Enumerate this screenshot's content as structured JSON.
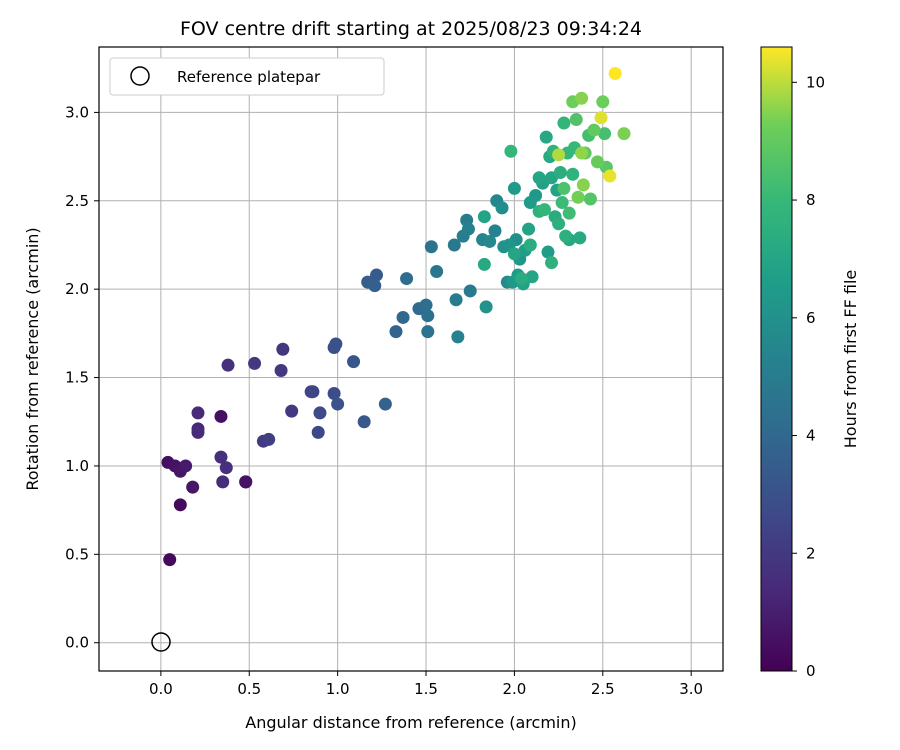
{
  "chart_data": {
    "type": "scatter",
    "title": "FOV centre drift starting at 2025/08/23 09:34:24",
    "xlabel": "Angular distance from reference (arcmin)",
    "ylabel": "Rotation from reference (arcmin)",
    "xlim": [
      -0.35,
      3.18
    ],
    "ylim": [
      -0.16,
      3.37
    ],
    "xticks": [
      "0.0",
      "0.5",
      "1.0",
      "1.5",
      "2.0",
      "2.5",
      "3.0"
    ],
    "yticks": [
      "0.0",
      "0.5",
      "1.0",
      "1.5",
      "2.0",
      "2.5",
      "3.0"
    ],
    "grid": true,
    "legend": {
      "position": "top-left",
      "entries": [
        {
          "label": "Reference platepar",
          "marker": "open-circle"
        }
      ]
    },
    "reference_point": {
      "x": 0.0,
      "y": 0.0
    },
    "colorbar": {
      "label": "Hours from first FF file",
      "range": [
        0,
        10.6
      ],
      "ticks": [
        "0",
        "2",
        "4",
        "6",
        "8",
        "10"
      ],
      "colormap": "viridis"
    },
    "points": [
      {
        "x": 0.05,
        "y": 0.47,
        "h": 0.3
      },
      {
        "x": 0.11,
        "y": 0.78,
        "h": 0.3
      },
      {
        "x": 0.04,
        "y": 1.02,
        "h": 0.5
      },
      {
        "x": 0.08,
        "y": 1.0,
        "h": 0.6
      },
      {
        "x": 0.11,
        "y": 0.97,
        "h": 0.7
      },
      {
        "x": 0.14,
        "y": 1.0,
        "h": 0.8
      },
      {
        "x": 0.18,
        "y": 0.88,
        "h": 0.7
      },
      {
        "x": 0.34,
        "y": 1.28,
        "h": 0.5
      },
      {
        "x": 0.48,
        "y": 0.91,
        "h": 0.4
      },
      {
        "x": 0.48,
        "y": 0.91,
        "h": 0.6
      },
      {
        "x": 0.21,
        "y": 1.3,
        "h": 1.4
      },
      {
        "x": 0.21,
        "y": 1.21,
        "h": 1.3
      },
      {
        "x": 0.21,
        "y": 1.19,
        "h": 1.5
      },
      {
        "x": 0.34,
        "y": 1.05,
        "h": 1.6
      },
      {
        "x": 0.35,
        "y": 0.91,
        "h": 1.5
      },
      {
        "x": 0.37,
        "y": 0.99,
        "h": 1.6
      },
      {
        "x": 0.38,
        "y": 1.57,
        "h": 1.7
      },
      {
        "x": 0.53,
        "y": 1.58,
        "h": 2.0
      },
      {
        "x": 0.58,
        "y": 1.14,
        "h": 2.1
      },
      {
        "x": 0.61,
        "y": 1.15,
        "h": 2.2
      },
      {
        "x": 0.68,
        "y": 1.54,
        "h": 2.0
      },
      {
        "x": 0.69,
        "y": 1.66,
        "h": 1.9
      },
      {
        "x": 0.74,
        "y": 1.31,
        "h": 2.0
      },
      {
        "x": 0.86,
        "y": 1.42,
        "h": 2.4
      },
      {
        "x": 0.85,
        "y": 1.42,
        "h": 2.5
      },
      {
        "x": 0.89,
        "y": 1.19,
        "h": 2.6
      },
      {
        "x": 0.9,
        "y": 1.3,
        "h": 2.7
      },
      {
        "x": 0.98,
        "y": 1.41,
        "h": 2.8
      },
      {
        "x": 0.98,
        "y": 1.67,
        "h": 2.9
      },
      {
        "x": 0.99,
        "y": 1.69,
        "h": 3.0
      },
      {
        "x": 1.0,
        "y": 1.35,
        "h": 3.1
      },
      {
        "x": 1.09,
        "y": 1.59,
        "h": 3.2
      },
      {
        "x": 1.15,
        "y": 1.25,
        "h": 3.3
      },
      {
        "x": 1.17,
        "y": 2.04,
        "h": 3.5
      },
      {
        "x": 1.21,
        "y": 2.02,
        "h": 3.6
      },
      {
        "x": 1.22,
        "y": 2.08,
        "h": 3.4
      },
      {
        "x": 1.27,
        "y": 1.35,
        "h": 3.7
      },
      {
        "x": 1.33,
        "y": 1.76,
        "h": 3.8
      },
      {
        "x": 1.37,
        "y": 1.84,
        "h": 4.0
      },
      {
        "x": 1.39,
        "y": 2.06,
        "h": 4.2
      },
      {
        "x": 1.46,
        "y": 1.89,
        "h": 4.1
      },
      {
        "x": 1.5,
        "y": 1.91,
        "h": 4.3
      },
      {
        "x": 1.51,
        "y": 1.85,
        "h": 4.4
      },
      {
        "x": 1.51,
        "y": 1.76,
        "h": 4.5
      },
      {
        "x": 1.53,
        "y": 2.24,
        "h": 4.6
      },
      {
        "x": 1.56,
        "y": 2.1,
        "h": 4.7
      },
      {
        "x": 1.66,
        "y": 2.25,
        "h": 4.8
      },
      {
        "x": 1.67,
        "y": 1.94,
        "h": 5.0
      },
      {
        "x": 1.68,
        "y": 1.73,
        "h": 5.3
      },
      {
        "x": 1.71,
        "y": 2.3,
        "h": 5.1
      },
      {
        "x": 1.73,
        "y": 2.39,
        "h": 5.0
      },
      {
        "x": 1.74,
        "y": 2.34,
        "h": 5.2
      },
      {
        "x": 1.75,
        "y": 1.99,
        "h": 4.9
      },
      {
        "x": 1.82,
        "y": 2.28,
        "h": 5.4
      },
      {
        "x": 1.84,
        "y": 1.9,
        "h": 6.1
      },
      {
        "x": 1.86,
        "y": 2.27,
        "h": 5.6
      },
      {
        "x": 1.89,
        "y": 2.33,
        "h": 5.3
      },
      {
        "x": 1.9,
        "y": 2.5,
        "h": 5.5
      },
      {
        "x": 1.93,
        "y": 2.46,
        "h": 5.8
      },
      {
        "x": 1.94,
        "y": 2.24,
        "h": 6.0
      },
      {
        "x": 1.96,
        "y": 2.04,
        "h": 5.7
      },
      {
        "x": 1.97,
        "y": 2.25,
        "h": 6.2
      },
      {
        "x": 1.99,
        "y": 2.04,
        "h": 6.4
      },
      {
        "x": 2.0,
        "y": 2.57,
        "h": 6.5
      },
      {
        "x": 2.01,
        "y": 2.28,
        "h": 5.9
      },
      {
        "x": 2.02,
        "y": 2.08,
        "h": 6.6
      },
      {
        "x": 2.03,
        "y": 2.17,
        "h": 6.3
      },
      {
        "x": 2.05,
        "y": 2.03,
        "h": 6.8
      },
      {
        "x": 2.06,
        "y": 2.22,
        "h": 6.7
      },
      {
        "x": 2.08,
        "y": 2.34,
        "h": 6.9
      },
      {
        "x": 2.09,
        "y": 2.49,
        "h": 6.5
      },
      {
        "x": 2.1,
        "y": 2.07,
        "h": 7.0
      },
      {
        "x": 2.12,
        "y": 2.53,
        "h": 6.4
      },
      {
        "x": 2.14,
        "y": 2.44,
        "h": 7.6
      },
      {
        "x": 2.16,
        "y": 2.6,
        "h": 6.8
      },
      {
        "x": 2.18,
        "y": 2.86,
        "h": 7.1
      },
      {
        "x": 2.19,
        "y": 2.21,
        "h": 6.6
      },
      {
        "x": 2.2,
        "y": 2.75,
        "h": 7.2
      },
      {
        "x": 2.21,
        "y": 2.63,
        "h": 7.0
      },
      {
        "x": 2.22,
        "y": 2.78,
        "h": 7.7
      },
      {
        "x": 2.23,
        "y": 2.41,
        "h": 7.3
      },
      {
        "x": 2.24,
        "y": 2.56,
        "h": 6.9
      },
      {
        "x": 2.26,
        "y": 2.66,
        "h": 7.4
      },
      {
        "x": 2.27,
        "y": 2.49,
        "h": 8.1
      },
      {
        "x": 2.28,
        "y": 2.94,
        "h": 7.8
      },
      {
        "x": 2.29,
        "y": 2.3,
        "h": 7.5
      },
      {
        "x": 2.3,
        "y": 2.77,
        "h": 7.9
      },
      {
        "x": 2.31,
        "y": 2.43,
        "h": 8.2
      },
      {
        "x": 2.33,
        "y": 2.65,
        "h": 7.7
      },
      {
        "x": 2.34,
        "y": 2.8,
        "h": 8.0
      },
      {
        "x": 2.35,
        "y": 2.96,
        "h": 8.6
      },
      {
        "x": 2.36,
        "y": 2.52,
        "h": 9.3
      },
      {
        "x": 2.37,
        "y": 2.29,
        "h": 7.2
      },
      {
        "x": 2.38,
        "y": 2.77,
        "h": 9.6
      },
      {
        "x": 2.39,
        "y": 2.59,
        "h": 9.5
      },
      {
        "x": 2.4,
        "y": 2.77,
        "h": 8.9
      },
      {
        "x": 2.42,
        "y": 2.87,
        "h": 8.3
      },
      {
        "x": 2.43,
        "y": 2.51,
        "h": 8.7
      },
      {
        "x": 2.45,
        "y": 2.9,
        "h": 9.0
      },
      {
        "x": 2.47,
        "y": 2.72,
        "h": 9.1
      },
      {
        "x": 2.49,
        "y": 2.97,
        "h": 10.3
      },
      {
        "x": 2.5,
        "y": 3.06,
        "h": 9.2
      },
      {
        "x": 2.51,
        "y": 2.88,
        "h": 8.4
      },
      {
        "x": 2.52,
        "y": 2.69,
        "h": 8.8
      },
      {
        "x": 2.54,
        "y": 2.64,
        "h": 10.4
      },
      {
        "x": 2.57,
        "y": 3.22,
        "h": 10.6
      },
      {
        "x": 2.62,
        "y": 2.88,
        "h": 9.4
      },
      {
        "x": 1.98,
        "y": 2.78,
        "h": 7.9
      },
      {
        "x": 2.33,
        "y": 3.06,
        "h": 9.2
      },
      {
        "x": 2.38,
        "y": 3.08,
        "h": 9.5
      },
      {
        "x": 2.28,
        "y": 2.57,
        "h": 8.5
      },
      {
        "x": 1.83,
        "y": 2.41,
        "h": 6.9
      },
      {
        "x": 1.83,
        "y": 2.14,
        "h": 7.2
      },
      {
        "x": 2.0,
        "y": 2.2,
        "h": 7.0
      },
      {
        "x": 2.09,
        "y": 2.25,
        "h": 7.4
      },
      {
        "x": 2.21,
        "y": 2.15,
        "h": 7.6
      },
      {
        "x": 2.04,
        "y": 2.06,
        "h": 7.3
      },
      {
        "x": 2.14,
        "y": 2.63,
        "h": 7.0
      },
      {
        "x": 2.17,
        "y": 2.45,
        "h": 7.9
      },
      {
        "x": 2.25,
        "y": 2.37,
        "h": 7.5
      },
      {
        "x": 2.31,
        "y": 2.28,
        "h": 7.1
      },
      {
        "x": 2.25,
        "y": 2.76,
        "h": 9.9
      }
    ]
  }
}
